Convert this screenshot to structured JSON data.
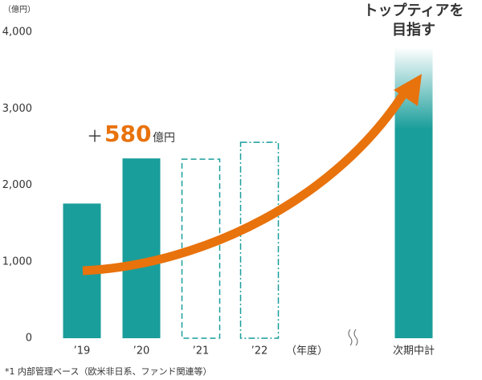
{
  "chart_data": {
    "type": "bar",
    "title": [
      "トップティアを",
      "目指す"
    ],
    "unit_label": "（億円）",
    "x_axis_label": "（年度）",
    "categories": [
      "’19",
      "’20",
      "’21",
      "’22",
      "次期中計"
    ],
    "values": [
      1760,
      2350,
      2340,
      2560,
      3800
    ],
    "styles": [
      "solid",
      "solid",
      "dashed",
      "dashdot",
      "gradient"
    ],
    "color": "#1a9e9b",
    "ylim": [
      0,
      4000
    ],
    "yticks": [
      0,
      {
        "value": 1000,
        "label": "1,000"
      },
      {
        "value": 2000,
        "label": "2,000"
      },
      {
        "value": 3000,
        "label": "3,000"
      },
      {
        "value": 4000,
        "label": "4,000"
      }
    ],
    "annotation": {
      "prefix": "＋",
      "value": "580",
      "unit": "億円",
      "color": "#e8720c"
    },
    "footnote": "*1 内部管理ベース（欧米非日系、ファンド関連等）"
  }
}
